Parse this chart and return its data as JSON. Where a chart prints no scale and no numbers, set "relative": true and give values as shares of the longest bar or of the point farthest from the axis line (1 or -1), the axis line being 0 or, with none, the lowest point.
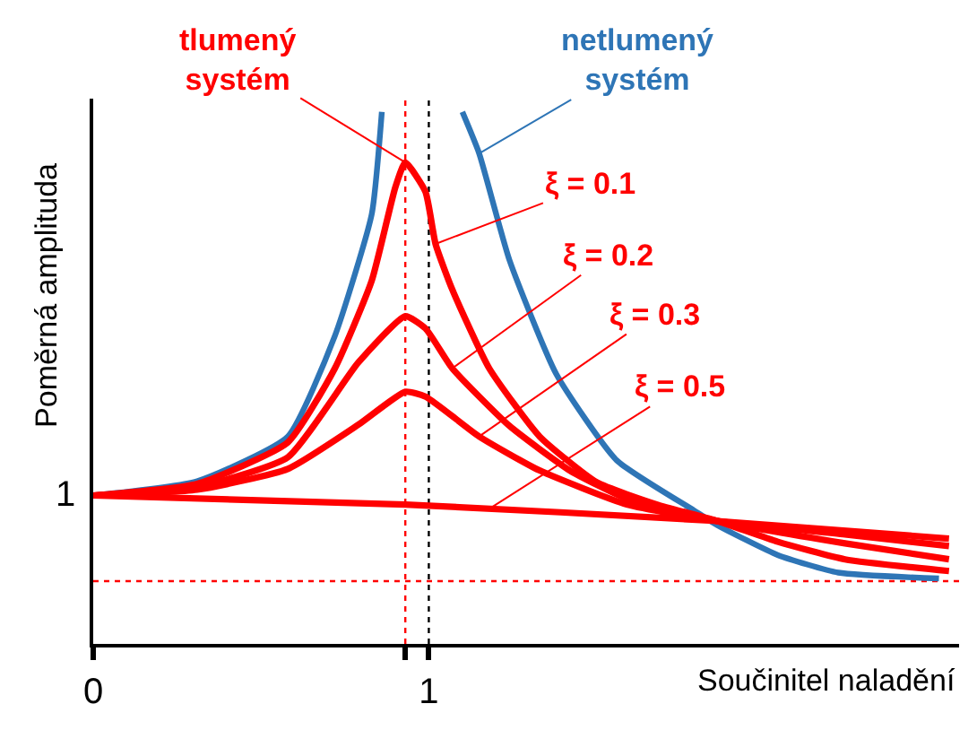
{
  "chart_data": {
    "type": "line",
    "xlabel": "Součinitel naladění",
    "ylabel": "Poměrná amplituda",
    "relative": true,
    "xlim": [
      0,
      2.58
    ],
    "xticks": [
      0,
      {
        "value": 0.93,
        "label": null
      },
      1
    ],
    "grid": false,
    "marker": "none",
    "line_style": "solid",
    "series": [
      {
        "color": "#2e75b6",
        "x": [
          0,
          0.31,
          0.58,
          0.72,
          0.83,
          0.86,
          null,
          1.1,
          1.15,
          1.24,
          1.38,
          1.56,
          1.79,
          1.86,
          2.04,
          2.22,
          2.52
        ],
        "values": [
          0.279,
          0.306,
          0.39,
          0.579,
          0.808,
          1.0,
          null,
          1.0,
          0.922,
          0.722,
          0.507,
          0.345,
          0.251,
          0.223,
          0.167,
          0.134,
          0.123
        ]
      },
      {
        "color": "#ff0000",
        "x": [
          0,
          0.31,
          0.58,
          0.72,
          0.83,
          0.9,
          0.93,
          0.99,
          1.02,
          1.07,
          1.18,
          1.33,
          1.5,
          1.68,
          1.86,
          2.04,
          2.24,
          2.55
        ],
        "values": [
          0.279,
          0.301,
          0.379,
          0.518,
          0.683,
          0.858,
          0.905,
          0.85,
          0.752,
          0.666,
          0.518,
          0.39,
          0.304,
          0.262,
          0.231,
          0.192,
          0.159,
          0.137
        ]
      },
      {
        "color": "#ff0000",
        "x": [
          0,
          0.31,
          0.58,
          0.79,
          0.93,
          0.99,
          1.07,
          1.24,
          1.42,
          1.59,
          1.86,
          2.24,
          2.55
        ],
        "values": [
          0.279,
          0.295,
          0.351,
          0.529,
          0.616,
          0.593,
          0.518,
          0.41,
          0.326,
          0.273,
          0.231,
          0.189,
          0.159
        ]
      },
      {
        "color": "#ff0000",
        "x": [
          0,
          0.31,
          0.58,
          0.79,
          0.93,
          0.99,
          1.15,
          1.33,
          1.59,
          1.86,
          2.24,
          2.55
        ],
        "values": [
          0.279,
          0.29,
          0.329,
          0.412,
          0.474,
          0.465,
          0.39,
          0.326,
          0.262,
          0.231,
          0.206,
          0.184
        ]
      },
      {
        "color": "#ff0000",
        "x": [
          0,
          0.93,
          1.86,
          2.55
        ],
        "values": [
          0.279,
          0.262,
          0.231,
          0.198
        ]
      }
    ],
    "ref_lines": [
      {
        "axis": "x",
        "value": 0.93,
        "color": "#ff0000",
        "line_style": "dotted"
      },
      {
        "axis": "x",
        "value": 1,
        "color": "#000000",
        "line_style": "dotted"
      },
      {
        "axis": "y",
        "value": 0.118,
        "color": "#ff0000",
        "line_style": "dotted"
      }
    ],
    "annotations": [
      {
        "text": "tlumený\nsystém",
        "x": 0.93,
        "y": 0.905
      },
      {
        "text": "netlumený\nsystém",
        "x": 1.15,
        "y": 0.922
      },
      {
        "text": "ξ = 0.1",
        "x": 1.02,
        "y": 0.752
      },
      {
        "text": "ξ = 0.2",
        "x": 1.07,
        "y": 0.518
      },
      {
        "text": "ξ = 0.3",
        "x": 1.15,
        "y": 0.39
      },
      {
        "text": "ξ = 0.5",
        "x": 1.18,
        "y": 0.254
      },
      {
        "text": "1",
        "x": 0,
        "y": 0.279
      }
    ]
  }
}
